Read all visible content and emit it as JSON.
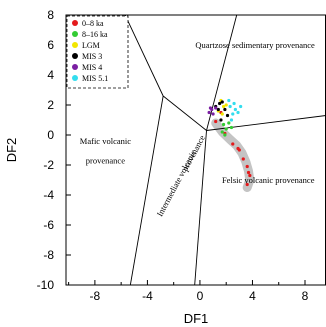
{
  "chart_data": {
    "type": "scatter",
    "xlabel": "DF1",
    "ylabel": "DF2",
    "xlim": [
      -10.2,
      9.6
    ],
    "ylim": [
      -10,
      8
    ],
    "xticks": [
      "-8",
      "-4",
      "0",
      "4",
      "8"
    ],
    "xtick_values": [
      -8,
      -4,
      0,
      4,
      8
    ],
    "yticks": [
      "8",
      "6",
      "4",
      "2",
      "0",
      "-2",
      "-4",
      "-6",
      "-8",
      "-10"
    ],
    "ytick_values": [
      8,
      6,
      4,
      2,
      0,
      -2,
      -4,
      -6,
      -8,
      -10
    ],
    "grid": false,
    "legend_position": "top-left",
    "regions": [
      {
        "label": "Quartzose sedimentary provenance",
        "x": 4.2,
        "y": 5.8,
        "rotate": 0
      },
      {
        "label": "Mafic volcanic",
        "x": -7.2,
        "y": -0.6,
        "rotate": 0
      },
      {
        "label": "provenance",
        "x": -7.2,
        "y": -1.9,
        "rotate": 0
      },
      {
        "label": "Felsic volcanic provenance",
        "x": 5.2,
        "y": -3.2,
        "rotate": 0
      },
      {
        "label": "Intermediate volcanic",
        "x": -1.6,
        "y": -3.3,
        "rotate": -62
      },
      {
        "label": "provenance",
        "x": -0.3,
        "y": -1.3,
        "rotate": -62
      }
    ],
    "boundary_lines": [
      [
        [
          -5.7,
          8
        ],
        [
          -2.8,
          2.6
        ]
      ],
      [
        [
          -2.8,
          2.6
        ],
        [
          0.5,
          0.3
        ]
      ],
      [
        [
          0.5,
          0.3
        ],
        [
          2.8,
          8
        ]
      ],
      [
        [
          -2.8,
          2.6
        ],
        [
          -5.3,
          -10
        ]
      ],
      [
        [
          0.5,
          0.3
        ],
        [
          -0.4,
          -10
        ]
      ],
      [
        [
          0.5,
          0.3
        ],
        [
          9.6,
          1.3
        ]
      ]
    ],
    "series": [
      {
        "name": "0–8 ka",
        "color": "#e41a1c",
        "points": [
          [
            1.9,
            0.1
          ],
          [
            2.5,
            -0.6
          ],
          [
            3.0,
            -1.0
          ],
          [
            3.3,
            -1.6
          ],
          [
            3.6,
            -2.1
          ],
          [
            3.8,
            -2.7
          ],
          [
            3.6,
            -3.3
          ],
          [
            2.9,
            -0.9
          ],
          [
            3.7,
            -2.5
          ],
          [
            1.6,
            1.5
          ],
          [
            1.2,
            0.9
          ]
        ]
      },
      {
        "name": "8–16 ka",
        "color": "#33cc33",
        "points": [
          [
            1.8,
            0.7
          ],
          [
            2.0,
            0.4
          ],
          [
            1.7,
            0.2
          ],
          [
            2.2,
            0.8
          ],
          [
            1.9,
            0.0
          ],
          [
            2.4,
            0.5
          ]
        ]
      },
      {
        "name": "LGM",
        "color": "#f2e600",
        "points": [
          [
            1.6,
            2.3
          ],
          [
            1.8,
            1.9
          ],
          [
            1.4,
            1.6
          ],
          [
            2.0,
            2.0
          ],
          [
            1.7,
            1.4
          ]
        ]
      },
      {
        "name": "MIS 3",
        "color": "#000000",
        "points": [
          [
            1.2,
            1.9
          ],
          [
            1.5,
            2.1
          ],
          [
            1.9,
            1.7
          ],
          [
            1.4,
            1.7
          ],
          [
            1.7,
            2.2
          ],
          [
            2.1,
            1.3
          ],
          [
            1.6,
            1.0
          ]
        ]
      },
      {
        "name": "MIS 4",
        "color": "#7a1fa2",
        "points": [
          [
            0.7,
            1.5
          ],
          [
            0.9,
            1.7
          ],
          [
            1.0,
            1.4
          ],
          [
            1.2,
            1.8
          ],
          [
            0.8,
            1.8
          ]
        ]
      },
      {
        "name": "MIS 5.1",
        "color": "#33ddee",
        "points": [
          [
            2.3,
            1.9
          ],
          [
            2.5,
            1.4
          ],
          [
            2.7,
            1.7
          ],
          [
            2.9,
            1.5
          ],
          [
            2.2,
            2.3
          ],
          [
            2.6,
            2.1
          ],
          [
            3.1,
            1.9
          ],
          [
            2.4,
            1.0
          ]
        ]
      }
    ],
    "gray_field": [
      [
        1.2,
        0.8
      ],
      [
        1.7,
        0.2
      ],
      [
        2.3,
        -0.3
      ],
      [
        2.8,
        -0.7
      ],
      [
        3.2,
        -1.2
      ],
      [
        3.5,
        -1.8
      ],
      [
        3.7,
        -2.4
      ],
      [
        3.8,
        -3.0
      ],
      [
        3.6,
        -3.5
      ]
    ]
  }
}
